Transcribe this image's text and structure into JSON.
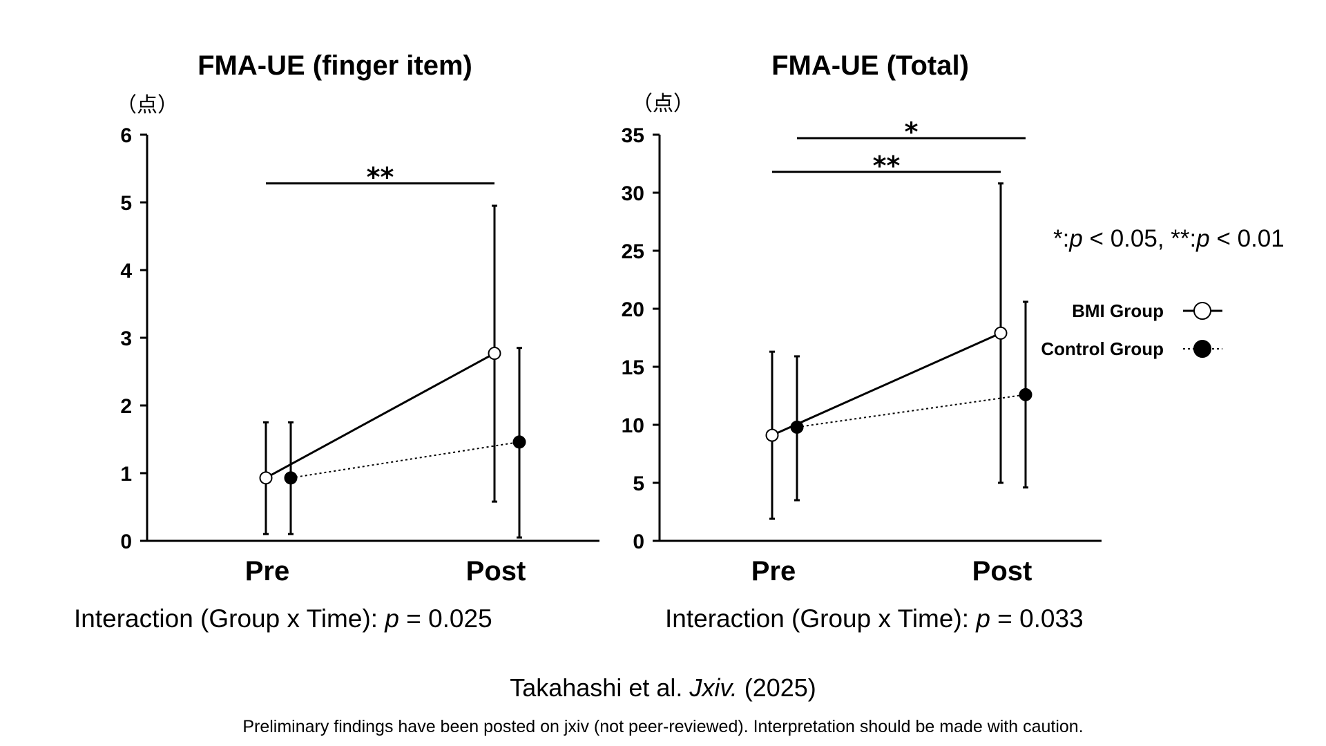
{
  "chart_data": [
    {
      "type": "line",
      "title": "FMA-UE (finger item)",
      "unit_label": "（点）",
      "categories": [
        "Pre",
        "Post"
      ],
      "ylim": [
        0,
        6
      ],
      "yticks": [
        0,
        1,
        2,
        3,
        4,
        5,
        6
      ],
      "series": [
        {
          "name": "BMI Group",
          "marker": "open-circle",
          "line": "solid",
          "values": [
            0.93,
            2.77
          ],
          "err_low": [
            0.1,
            0.58
          ],
          "err_high": [
            1.75,
            4.95
          ]
        },
        {
          "name": "Control Group",
          "marker": "filled-circle",
          "line": "dotted",
          "values": [
            0.93,
            1.46
          ],
          "err_low": [
            0.1,
            0.05
          ],
          "err_high": [
            1.75,
            2.85
          ]
        }
      ],
      "significance": [
        {
          "label": "**",
          "from": "BMI Group Pre",
          "to": "BMI Group Post",
          "y": 5.28
        }
      ],
      "interaction": {
        "prefix": "Interaction (Group x Time): ",
        "p": "p",
        "value": " = 0.025"
      }
    },
    {
      "type": "line",
      "title": "FMA-UE (Total)",
      "unit_label": "（点）",
      "categories": [
        "Pre",
        "Post"
      ],
      "ylim": [
        0,
        35
      ],
      "yticks": [
        0,
        5,
        10,
        15,
        20,
        25,
        30,
        35
      ],
      "series": [
        {
          "name": "BMI Group",
          "marker": "open-circle",
          "line": "solid",
          "values": [
            9.1,
            17.9
          ],
          "err_low": [
            1.9,
            5.0
          ],
          "err_high": [
            16.3,
            30.8
          ]
        },
        {
          "name": "Control Group",
          "marker": "filled-circle",
          "line": "dotted",
          "values": [
            9.8,
            12.6
          ],
          "err_low": [
            3.5,
            4.6
          ],
          "err_high": [
            15.9,
            20.6
          ]
        }
      ],
      "significance": [
        {
          "label": "*",
          "from": "Control Group Pre",
          "to": "Control Group Post",
          "y": 34.7
        },
        {
          "label": "**",
          "from": "BMI Group Pre",
          "to": "BMI Group Post",
          "y": 31.8
        }
      ],
      "interaction": {
        "prefix": "Interaction (Group x Time): ",
        "p": "p",
        "value": " = 0.033"
      }
    }
  ],
  "significance_note": {
    "s1": "*:",
    "p1": "p",
    "t1": " < 0.05, **:",
    "p2": "p",
    "t2": " < 0.01"
  },
  "legend": [
    {
      "label": "BMI Group",
      "marker": "open-circle",
      "line": "solid"
    },
    {
      "label": "Control Group",
      "marker": "filled-circle",
      "line": "dotted"
    }
  ],
  "citation": {
    "authors": "Takahashi et al. ",
    "journal": "Jxiv.",
    "year": " (2025)"
  },
  "disclaimer": "Preliminary findings have been posted on jxiv (not peer-reviewed). Interpretation should be made with caution."
}
